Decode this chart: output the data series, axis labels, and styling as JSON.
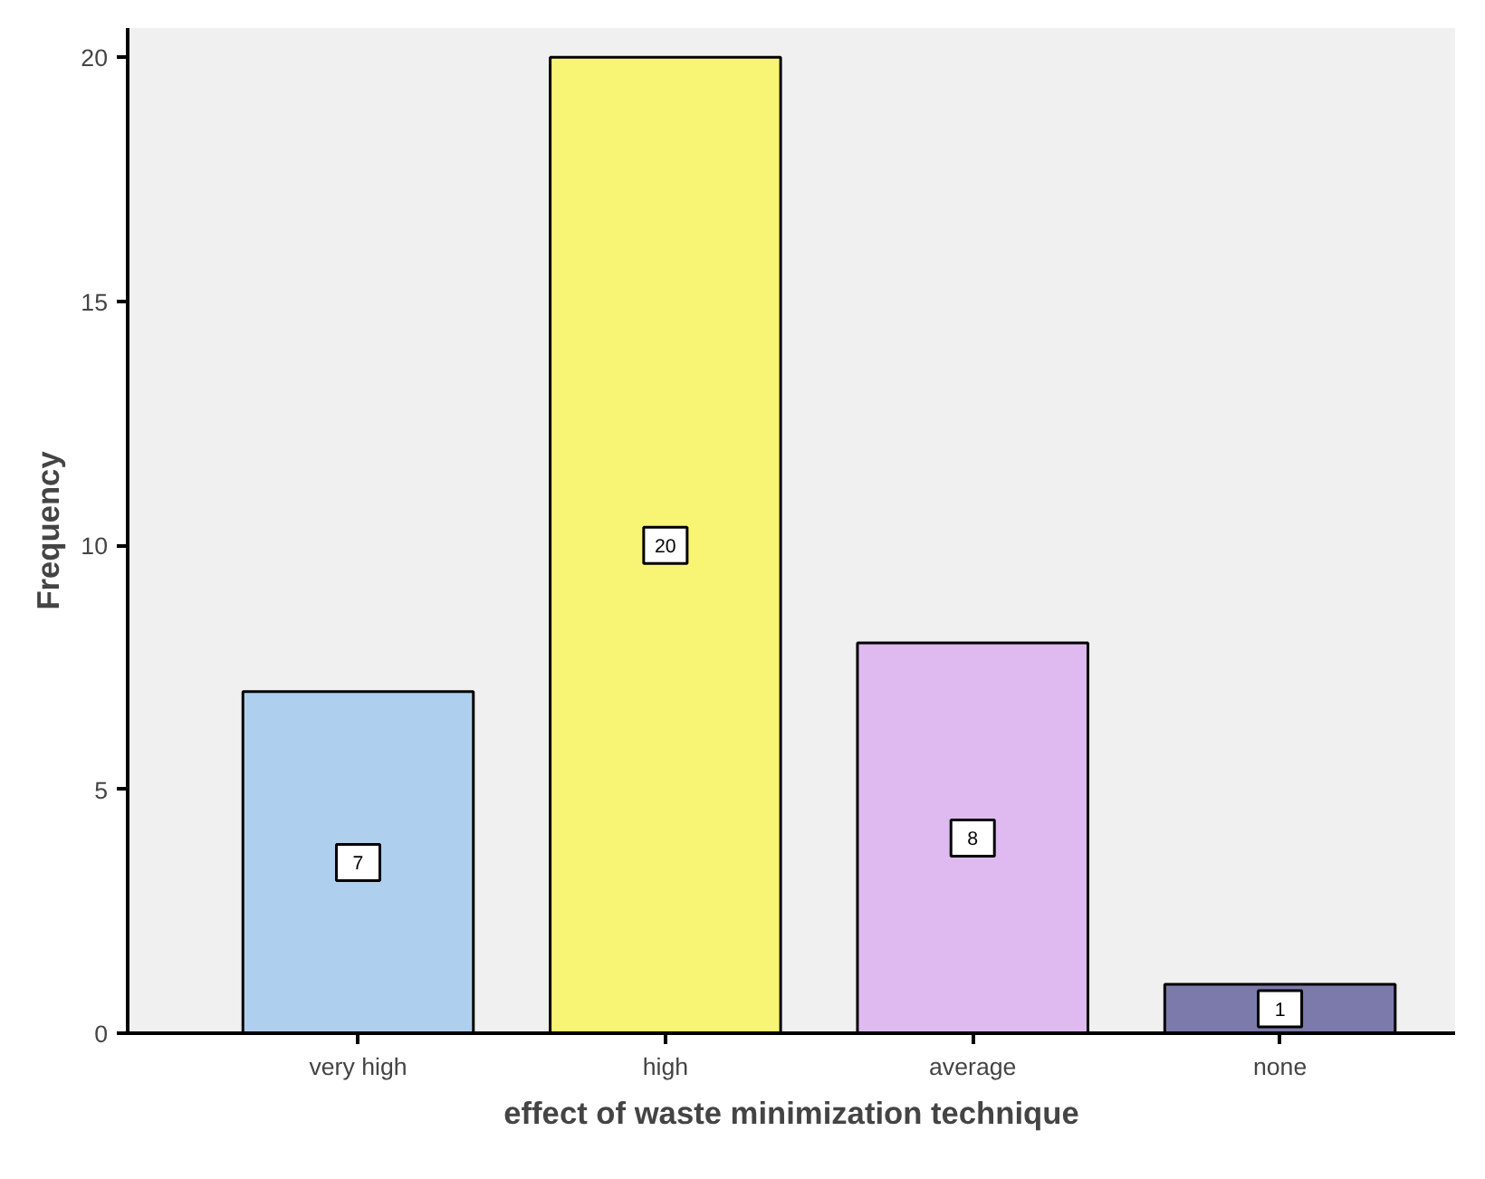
{
  "chart_data": {
    "type": "bar",
    "xlabel": "effect of waste minimization technique",
    "ylabel": "Frequency",
    "categories": [
      "very high",
      "high",
      "average",
      "none"
    ],
    "values": [
      7,
      20,
      8,
      1
    ],
    "colors": [
      "#aed0ee",
      "#f8f574",
      "#dfbaf0",
      "#7b7aab"
    ],
    "ylim": [
      0,
      20.6
    ],
    "yticks": [
      0,
      5,
      10,
      15,
      20
    ],
    "grid": false,
    "data_labels": true
  }
}
